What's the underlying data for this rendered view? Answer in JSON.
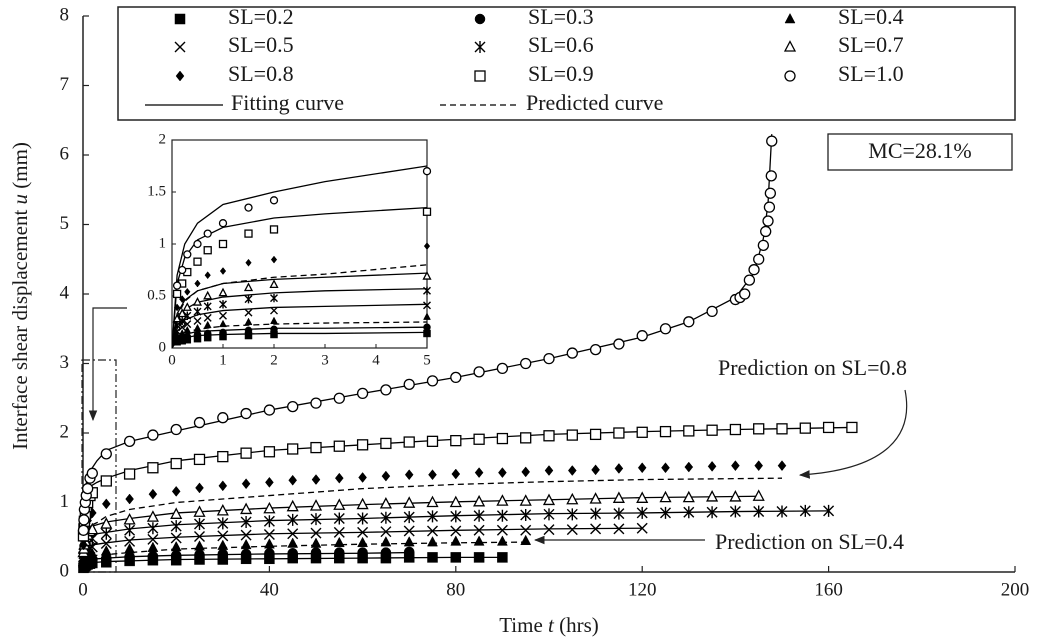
{
  "chart_data": {
    "type": "scatter",
    "xlabel": [
      "Time ",
      "t",
      " (hrs)"
    ],
    "ylabel": [
      "Interface shear displacement ",
      "u",
      " (mm)"
    ],
    "xlim": [
      0,
      200
    ],
    "xticks": [
      0,
      40,
      80,
      120,
      160,
      200
    ],
    "ylim": [
      0,
      8
    ],
    "yticks": [
      0,
      1,
      2,
      3,
      4,
      5,
      6,
      7,
      8
    ],
    "color": "#000000",
    "series": [
      {
        "name": "SL=0.2",
        "marker": "square-filled",
        "x": [
          0.1,
          0.2,
          0.3,
          0.5,
          0.7,
          1,
          1.5,
          2,
          5,
          10,
          15,
          20,
          25,
          30,
          35,
          40,
          45,
          50,
          55,
          60,
          65,
          70,
          75,
          80,
          85,
          90
        ],
        "values": [
          0.06,
          0.07,
          0.08,
          0.09,
          0.1,
          0.11,
          0.12,
          0.13,
          0.14,
          0.16,
          0.17,
          0.17,
          0.18,
          0.18,
          0.19,
          0.19,
          0.2,
          0.2,
          0.2,
          0.2,
          0.2,
          0.21,
          0.21,
          0.21,
          0.21,
          0.21
        ]
      },
      {
        "name": "SL=0.3",
        "marker": "circle-filled",
        "x": [
          0.1,
          0.2,
          0.3,
          0.5,
          0.7,
          1,
          1.5,
          2,
          5,
          10,
          15,
          20,
          25,
          30,
          35,
          40,
          45,
          50,
          55,
          60,
          65,
          70
        ],
        "values": [
          0.08,
          0.1,
          0.11,
          0.13,
          0.14,
          0.15,
          0.17,
          0.18,
          0.2,
          0.22,
          0.23,
          0.24,
          0.25,
          0.26,
          0.26,
          0.27,
          0.27,
          0.28,
          0.28,
          0.28,
          0.28,
          0.29
        ]
      },
      {
        "name": "SL=0.4",
        "marker": "triangle-filled",
        "x": [
          0.1,
          0.2,
          0.3,
          0.5,
          0.7,
          1,
          1.5,
          2,
          5,
          10,
          15,
          20,
          25,
          30,
          35,
          40,
          45,
          50,
          55,
          60,
          65,
          70,
          75,
          80,
          85,
          90,
          95
        ],
        "values": [
          0.12,
          0.14,
          0.17,
          0.19,
          0.22,
          0.23,
          0.25,
          0.26,
          0.3,
          0.33,
          0.35,
          0.36,
          0.37,
          0.38,
          0.39,
          0.4,
          0.41,
          0.41,
          0.42,
          0.42,
          0.43,
          0.43,
          0.43,
          0.44,
          0.44,
          0.44,
          0.45
        ]
      },
      {
        "name": "SL=0.5",
        "marker": "x",
        "x": [
          0.1,
          0.2,
          0.3,
          0.5,
          0.7,
          1,
          1.5,
          2,
          5,
          10,
          15,
          20,
          25,
          30,
          35,
          40,
          45,
          50,
          55,
          60,
          65,
          70,
          75,
          80,
          85,
          90,
          95,
          100,
          105,
          110,
          115,
          120
        ],
        "values": [
          0.16,
          0.2,
          0.23,
          0.26,
          0.29,
          0.31,
          0.34,
          0.36,
          0.41,
          0.44,
          0.47,
          0.49,
          0.51,
          0.52,
          0.53,
          0.54,
          0.55,
          0.56,
          0.57,
          0.57,
          0.58,
          0.59,
          0.59,
          0.59,
          0.6,
          0.6,
          0.6,
          0.61,
          0.61,
          0.62,
          0.62,
          0.63
        ]
      },
      {
        "name": "SL=0.6",
        "marker": "asterisk",
        "x": [
          0.1,
          0.2,
          0.3,
          0.5,
          0.7,
          1,
          1.5,
          2,
          5,
          10,
          15,
          20,
          25,
          30,
          35,
          40,
          45,
          50,
          55,
          60,
          65,
          70,
          75,
          80,
          85,
          90,
          95,
          100,
          105,
          110,
          115,
          120,
          125,
          130,
          135,
          140,
          145,
          150,
          155,
          160
        ],
        "values": [
          0.22,
          0.26,
          0.31,
          0.35,
          0.4,
          0.42,
          0.47,
          0.48,
          0.55,
          0.6,
          0.63,
          0.66,
          0.69,
          0.7,
          0.72,
          0.73,
          0.75,
          0.76,
          0.77,
          0.77,
          0.78,
          0.79,
          0.8,
          0.8,
          0.81,
          0.81,
          0.82,
          0.83,
          0.83,
          0.84,
          0.84,
          0.85,
          0.85,
          0.86,
          0.86,
          0.87,
          0.87,
          0.87,
          0.88,
          0.88
        ]
      },
      {
        "name": "SL=0.7",
        "marker": "triangle-open",
        "x": [
          0.1,
          0.2,
          0.3,
          0.5,
          0.7,
          1,
          1.5,
          2,
          5,
          10,
          15,
          20,
          25,
          30,
          35,
          40,
          45,
          50,
          55,
          60,
          65,
          70,
          75,
          80,
          85,
          90,
          95,
          100,
          105,
          110,
          115,
          120,
          125,
          130,
          135,
          140,
          145
        ],
        "values": [
          0.28,
          0.33,
          0.39,
          0.44,
          0.5,
          0.53,
          0.58,
          0.61,
          0.69,
          0.75,
          0.79,
          0.83,
          0.86,
          0.88,
          0.9,
          0.91,
          0.94,
          0.95,
          0.96,
          0.97,
          0.98,
          0.99,
          1.0,
          1.0,
          1.01,
          1.02,
          1.02,
          1.03,
          1.04,
          1.05,
          1.06,
          1.06,
          1.07,
          1.07,
          1.08,
          1.08,
          1.09
        ]
      },
      {
        "name": "SL=0.8",
        "marker": "diamond",
        "x": [
          0.1,
          0.2,
          0.3,
          0.5,
          0.7,
          1,
          1.5,
          2,
          5,
          10,
          15,
          20,
          25,
          30,
          35,
          40,
          45,
          50,
          55,
          60,
          65,
          70,
          75,
          80,
          85,
          90,
          95,
          100,
          105,
          110,
          115,
          120,
          125,
          130,
          135,
          140,
          145,
          150
        ],
        "values": [
          0.39,
          0.47,
          0.54,
          0.62,
          0.7,
          0.74,
          0.82,
          0.85,
          0.98,
          1.05,
          1.12,
          1.16,
          1.21,
          1.24,
          1.27,
          1.29,
          1.32,
          1.33,
          1.35,
          1.36,
          1.38,
          1.4,
          1.4,
          1.41,
          1.43,
          1.43,
          1.44,
          1.46,
          1.46,
          1.47,
          1.49,
          1.5,
          1.5,
          1.51,
          1.52,
          1.53,
          1.53,
          1.53
        ]
      },
      {
        "name": "SL=0.9",
        "marker": "square-open",
        "x": [
          0.1,
          0.2,
          0.3,
          0.5,
          0.7,
          1,
          1.5,
          2,
          5,
          10,
          15,
          20,
          25,
          30,
          35,
          40,
          45,
          50,
          55,
          60,
          65,
          70,
          75,
          80,
          85,
          90,
          95,
          100,
          105,
          110,
          115,
          120,
          125,
          130,
          135,
          140,
          145,
          150,
          155,
          160,
          165
        ],
        "values": [
          0.52,
          0.62,
          0.73,
          0.83,
          0.94,
          1.0,
          1.1,
          1.14,
          1.31,
          1.41,
          1.5,
          1.56,
          1.62,
          1.66,
          1.71,
          1.73,
          1.77,
          1.79,
          1.81,
          1.83,
          1.85,
          1.87,
          1.88,
          1.89,
          1.91,
          1.92,
          1.93,
          1.96,
          1.97,
          1.98,
          2.0,
          2.01,
          2.02,
          2.03,
          2.04,
          2.05,
          2.06,
          2.06,
          2.07,
          2.08,
          2.08
        ]
      },
      {
        "name": "SL=1.0",
        "marker": "circle-open",
        "x": [
          0.1,
          0.2,
          0.3,
          0.5,
          0.7,
          1,
          1.5,
          2,
          5,
          10,
          15,
          20,
          25,
          30,
          35,
          40,
          45,
          50,
          55,
          60,
          65,
          70,
          75,
          80,
          85,
          90,
          95,
          100,
          105,
          110,
          115,
          120,
          125,
          130,
          135,
          140,
          141,
          142,
          143,
          144,
          145,
          146,
          146.5,
          147,
          147.3,
          147.5,
          147.7,
          147.8
        ],
        "values": [
          0.6,
          0.75,
          0.9,
          1.0,
          1.1,
          1.2,
          1.35,
          1.42,
          1.7,
          1.88,
          1.97,
          2.05,
          2.15,
          2.22,
          2.28,
          2.33,
          2.38,
          2.43,
          2.5,
          2.57,
          2.62,
          2.7,
          2.75,
          2.8,
          2.88,
          2.93,
          3.0,
          3.07,
          3.15,
          3.2,
          3.28,
          3.4,
          3.5,
          3.6,
          3.75,
          3.92,
          3.95,
          4.0,
          4.2,
          4.35,
          4.5,
          4.7,
          4.9,
          5.05,
          5.25,
          5.45,
          5.7,
          6.2
        ]
      }
    ],
    "curve_legend": [
      {
        "name": "Fitting curve",
        "style": "solid"
      },
      {
        "name": "Predicted curve",
        "style": "dashed"
      }
    ],
    "curves": [
      {
        "style": "solid",
        "x": [
          0,
          0.1,
          0.25,
          0.5,
          1,
          2,
          3,
          5,
          10,
          20,
          40,
          60,
          80,
          90
        ],
        "values": [
          0,
          0.07,
          0.1,
          0.12,
          0.13,
          0.14,
          0.14,
          0.15,
          0.16,
          0.18,
          0.19,
          0.2,
          0.21,
          0.21
        ]
      },
      {
        "style": "solid",
        "x": [
          0,
          0.1,
          0.25,
          0.5,
          1,
          2,
          3,
          5,
          10,
          20,
          40,
          60,
          70
        ],
        "values": [
          0,
          0.09,
          0.13,
          0.16,
          0.17,
          0.19,
          0.19,
          0.2,
          0.22,
          0.24,
          0.26,
          0.27,
          0.28
        ]
      },
      {
        "style": "dashed",
        "x": [
          0,
          0.1,
          0.25,
          0.5,
          1,
          2,
          3,
          5,
          10,
          20,
          40,
          60,
          80,
          95
        ],
        "values": [
          0,
          0.1,
          0.15,
          0.18,
          0.21,
          0.23,
          0.24,
          0.25,
          0.28,
          0.33,
          0.37,
          0.4,
          0.42,
          0.43
        ]
      },
      {
        "style": "solid",
        "x": [
          0,
          0.1,
          0.25,
          0.5,
          1,
          2,
          3,
          5,
          10,
          20,
          40,
          60,
          80,
          100,
          120
        ],
        "values": [
          0,
          0.19,
          0.27,
          0.32,
          0.36,
          0.39,
          0.4,
          0.42,
          0.46,
          0.5,
          0.55,
          0.57,
          0.6,
          0.62,
          0.63
        ]
      },
      {
        "style": "solid",
        "x": [
          0,
          0.1,
          0.25,
          0.5,
          1,
          2,
          3,
          5,
          10,
          20,
          40,
          60,
          80,
          100,
          120,
          140,
          160
        ],
        "values": [
          0,
          0.26,
          0.37,
          0.44,
          0.49,
          0.53,
          0.55,
          0.57,
          0.62,
          0.68,
          0.74,
          0.77,
          0.81,
          0.84,
          0.85,
          0.87,
          0.88
        ]
      },
      {
        "style": "solid",
        "x": [
          0,
          0.1,
          0.25,
          0.5,
          1,
          2,
          3,
          5,
          10,
          20,
          40,
          60,
          80,
          100,
          120,
          145
        ],
        "values": [
          0,
          0.33,
          0.46,
          0.55,
          0.62,
          0.66,
          0.68,
          0.72,
          0.77,
          0.85,
          0.92,
          0.97,
          1.01,
          1.04,
          1.07,
          1.09
        ]
      },
      {
        "style": "dashed",
        "x": [
          0,
          0.1,
          0.25,
          0.5,
          1,
          2,
          3,
          5,
          10,
          20,
          40,
          60,
          80,
          100,
          120,
          150
        ],
        "values": [
          0,
          0.3,
          0.45,
          0.55,
          0.62,
          0.68,
          0.71,
          0.8,
          0.9,
          1.0,
          1.1,
          1.2,
          1.26,
          1.3,
          1.33,
          1.35
        ]
      },
      {
        "style": "solid",
        "x": [
          0,
          0.1,
          0.25,
          0.5,
          1,
          2,
          3,
          5,
          10,
          20,
          40,
          60,
          80,
          100,
          120,
          140,
          165
        ],
        "values": [
          0,
          0.62,
          0.87,
          1.04,
          1.16,
          1.25,
          1.29,
          1.35,
          1.46,
          1.6,
          1.75,
          1.83,
          1.91,
          1.98,
          2.02,
          2.05,
          2.08
        ]
      },
      {
        "style": "solid",
        "x": [
          0,
          0.1,
          0.25,
          0.5,
          1,
          2,
          3,
          5,
          10,
          20,
          40,
          60,
          80,
          100,
          120,
          130,
          140,
          144,
          146,
          147,
          147.8
        ],
        "values": [
          0,
          0.7,
          1.0,
          1.2,
          1.38,
          1.5,
          1.6,
          1.75,
          1.88,
          2.03,
          2.33,
          2.57,
          2.8,
          3.07,
          3.38,
          3.6,
          3.95,
          4.3,
          4.8,
          5.3,
          6.3
        ]
      }
    ],
    "inset": {
      "xlim": [
        0,
        5
      ],
      "xticks": [
        0,
        1,
        2,
        3,
        4,
        5
      ],
      "ylim": [
        0,
        2
      ],
      "yticks": [
        0,
        0.5,
        1,
        1.5,
        2
      ]
    },
    "annotations": [
      "MC=28.1%",
      "Prediction on SL=0.8",
      "Prediction on SL=0.4"
    ]
  }
}
